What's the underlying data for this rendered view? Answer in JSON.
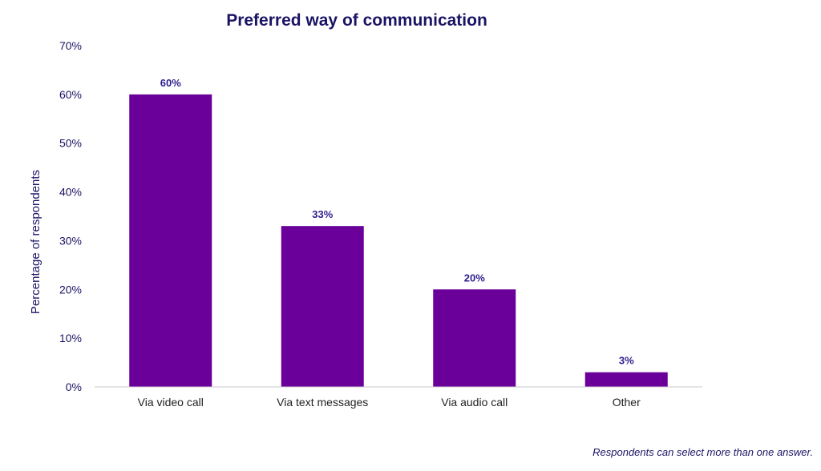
{
  "chart_data": {
    "type": "bar",
    "title": "Preferred way of communication",
    "xlabel": "",
    "ylabel": "Percentage of respondents",
    "categories": [
      "Via video call",
      "Via text messages",
      "Via audio call",
      "Other"
    ],
    "values": [
      60,
      33,
      20,
      3
    ],
    "value_labels": [
      "60%",
      "33%",
      "20%",
      "3%"
    ],
    "ylim": [
      0,
      70
    ],
    "yticks": [
      0,
      10,
      20,
      30,
      40,
      50,
      60,
      70
    ],
    "ytick_labels": [
      "0%",
      "10%",
      "20%",
      "30%",
      "40%",
      "50%",
      "60%",
      "70%"
    ],
    "grid": false,
    "legend": "none",
    "bar_color": "#6a0099",
    "data_label_color": "#2e1f8f",
    "text_color": "#1b1464"
  },
  "footnote": "Respondents can select more than one answer."
}
